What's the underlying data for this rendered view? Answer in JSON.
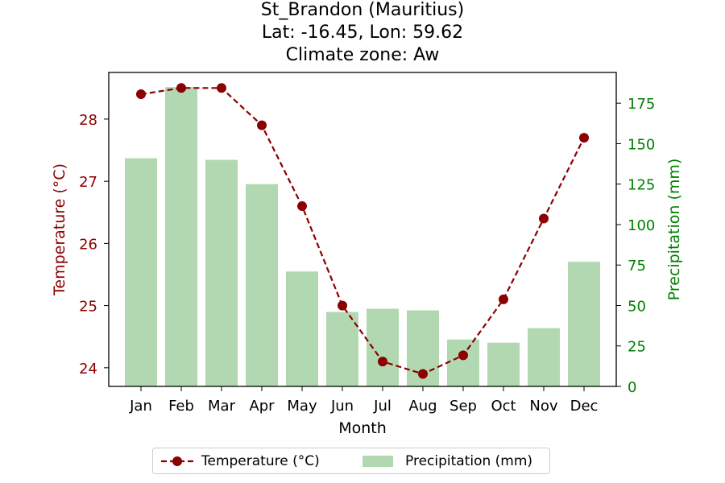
{
  "chart_data": {
    "type": "bar+line",
    "title_lines": [
      "St_Brandon (Mauritius)",
      "Lat: -16.45, Lon: 59.62",
      "Climate zone: Aw"
    ],
    "categories": [
      "Jan",
      "Feb",
      "Mar",
      "Apr",
      "May",
      "Jun",
      "Jul",
      "Aug",
      "Sep",
      "Oct",
      "Nov",
      "Dec"
    ],
    "xlabel": "Month",
    "temperature": {
      "name": "Temperature (°C)",
      "axis_label": "Temperature (°C)",
      "color": "#8b0000",
      "style": "dashed line with circle markers",
      "values": [
        28.4,
        28.5,
        28.5,
        27.9,
        26.6,
        25.0,
        24.1,
        23.9,
        24.2,
        25.1,
        26.4,
        27.7
      ],
      "ylim": [
        23.7,
        28.75
      ],
      "ticks": [
        24,
        25,
        26,
        27,
        28
      ]
    },
    "precipitation": {
      "name": "Precipitation (mm)",
      "axis_label": "Precipitation (mm)",
      "color": "#b2d8b2",
      "axis_color": "#008000",
      "values": [
        141,
        185,
        140,
        125,
        71,
        46,
        48,
        47,
        29,
        27,
        36,
        77
      ],
      "ylim": [
        0,
        194
      ],
      "ticks": [
        0,
        25,
        50,
        75,
        100,
        125,
        150,
        175
      ]
    },
    "legend_placement": "bottom-center, below plot",
    "grid": false
  }
}
